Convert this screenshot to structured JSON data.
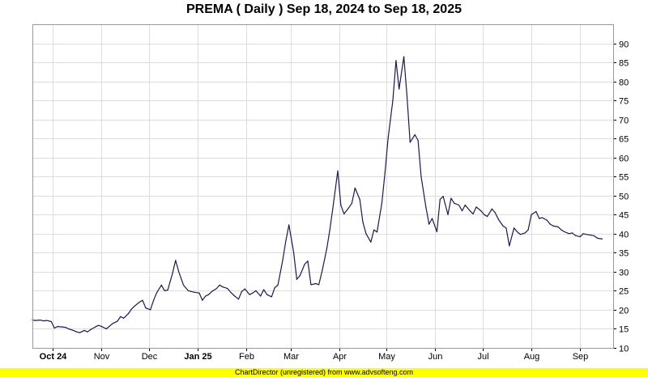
{
  "chart_data": {
    "type": "line",
    "title": "PREMA ( Daily ) Sep 18, 2024 to Sep 18, 2025",
    "xlabel": "",
    "ylabel": "",
    "x_range": [
      "2024-09-18",
      "2025-09-18"
    ],
    "ylim": [
      10,
      95
    ],
    "y_ticks": [
      10,
      15,
      20,
      25,
      30,
      35,
      40,
      45,
      50,
      55,
      60,
      65,
      70,
      75,
      80,
      85,
      90
    ],
    "x_ticks": [
      {
        "label": "Oct 24",
        "date": "2024-10-01",
        "bold": true
      },
      {
        "label": "Nov",
        "date": "2024-11-01",
        "bold": false
      },
      {
        "label": "Dec",
        "date": "2024-12-01",
        "bold": false
      },
      {
        "label": "Jan 25",
        "date": "2025-01-01",
        "bold": true
      },
      {
        "label": "Feb",
        "date": "2025-02-01",
        "bold": false
      },
      {
        "label": "Mar",
        "date": "2025-03-01",
        "bold": false
      },
      {
        "label": "Apr",
        "date": "2025-04-01",
        "bold": false
      },
      {
        "label": "May",
        "date": "2025-05-01",
        "bold": false
      },
      {
        "label": "Jun",
        "date": "2025-06-01",
        "bold": false
      },
      {
        "label": "Jul",
        "date": "2025-07-01",
        "bold": false
      },
      {
        "label": "Aug",
        "date": "2025-08-01",
        "bold": false
      },
      {
        "label": "Sep",
        "date": "2025-09-01",
        "bold": false
      }
    ],
    "grid": true,
    "series": [
      {
        "name": "",
        "color": "#1a1a4d",
        "points": [
          [
            "2024-09-18",
            17.3
          ],
          [
            "2024-09-20",
            17.2
          ],
          [
            "2024-09-23",
            17.3
          ],
          [
            "2024-09-25",
            17.1
          ],
          [
            "2024-09-27",
            17.2
          ],
          [
            "2024-09-30",
            16.9
          ],
          [
            "2024-10-02",
            15.2
          ],
          [
            "2024-10-04",
            15.6
          ],
          [
            "2024-10-07",
            15.5
          ],
          [
            "2024-10-09",
            15.4
          ],
          [
            "2024-10-11",
            15.0
          ],
          [
            "2024-10-14",
            14.6
          ],
          [
            "2024-10-16",
            14.2
          ],
          [
            "2024-10-18",
            14.0
          ],
          [
            "2024-10-21",
            14.6
          ],
          [
            "2024-10-23",
            14.2
          ],
          [
            "2024-10-25",
            14.8
          ],
          [
            "2024-10-28",
            15.5
          ],
          [
            "2024-10-30",
            15.9
          ],
          [
            "2024-11-01",
            15.6
          ],
          [
            "2024-11-04",
            15.0
          ],
          [
            "2024-11-06",
            15.7
          ],
          [
            "2024-11-08",
            16.4
          ],
          [
            "2024-11-11",
            17.0
          ],
          [
            "2024-11-13",
            18.2
          ],
          [
            "2024-11-15",
            17.8
          ],
          [
            "2024-11-18",
            19.0
          ],
          [
            "2024-11-20",
            20.2
          ],
          [
            "2024-11-22",
            21.0
          ],
          [
            "2024-11-25",
            22.0
          ],
          [
            "2024-11-27",
            22.5
          ],
          [
            "2024-11-29",
            20.5
          ],
          [
            "2024-12-02",
            20.0
          ],
          [
            "2024-12-04",
            22.5
          ],
          [
            "2024-12-06",
            24.5
          ],
          [
            "2024-12-09",
            26.5
          ],
          [
            "2024-12-11",
            25.0
          ],
          [
            "2024-12-13",
            25.2
          ],
          [
            "2024-12-16",
            29.5
          ],
          [
            "2024-12-18",
            33.0
          ],
          [
            "2024-12-20",
            30.0
          ],
          [
            "2024-12-23",
            26.5
          ],
          [
            "2024-12-26",
            25.0
          ],
          [
            "2024-12-30",
            24.6
          ],
          [
            "2025-01-02",
            24.4
          ],
          [
            "2025-01-04",
            22.5
          ],
          [
            "2025-01-06",
            23.6
          ],
          [
            "2025-01-08",
            24.0
          ],
          [
            "2025-01-10",
            24.8
          ],
          [
            "2025-01-13",
            25.6
          ],
          [
            "2025-01-15",
            26.5
          ],
          [
            "2025-01-17",
            26.0
          ],
          [
            "2025-01-20",
            25.6
          ],
          [
            "2025-01-22",
            24.6
          ],
          [
            "2025-01-24",
            23.8
          ],
          [
            "2025-01-27",
            22.8
          ],
          [
            "2025-01-29",
            24.8
          ],
          [
            "2025-01-31",
            25.5
          ],
          [
            "2025-02-03",
            24.0
          ],
          [
            "2025-02-05",
            24.4
          ],
          [
            "2025-02-07",
            25.0
          ],
          [
            "2025-02-10",
            23.6
          ],
          [
            "2025-02-12",
            25.3
          ],
          [
            "2025-02-14",
            24.0
          ],
          [
            "2025-02-17",
            23.4
          ],
          [
            "2025-02-19",
            25.8
          ],
          [
            "2025-02-21",
            26.5
          ],
          [
            "2025-02-24",
            33.0
          ],
          [
            "2025-02-26",
            38.0
          ],
          [
            "2025-02-28",
            42.3
          ],
          [
            "2025-03-03",
            35.0
          ],
          [
            "2025-03-05",
            28.0
          ],
          [
            "2025-03-07",
            29.0
          ],
          [
            "2025-03-10",
            32.0
          ],
          [
            "2025-03-12",
            32.8
          ],
          [
            "2025-03-14",
            26.6
          ],
          [
            "2025-03-17",
            26.9
          ],
          [
            "2025-03-19",
            26.6
          ],
          [
            "2025-03-21",
            30.0
          ],
          [
            "2025-03-24",
            36.0
          ],
          [
            "2025-03-26",
            41.0
          ],
          [
            "2025-03-28",
            47.0
          ],
          [
            "2025-03-31",
            56.5
          ],
          [
            "2025-04-02",
            47.5
          ],
          [
            "2025-04-04",
            45.2
          ],
          [
            "2025-04-07",
            46.8
          ],
          [
            "2025-04-09",
            48.0
          ],
          [
            "2025-04-11",
            52.0
          ],
          [
            "2025-04-14",
            49.0
          ],
          [
            "2025-04-16",
            43.0
          ],
          [
            "2025-04-18",
            40.0
          ],
          [
            "2025-04-21",
            37.8
          ],
          [
            "2025-04-23",
            41.0
          ],
          [
            "2025-04-25",
            40.4
          ],
          [
            "2025-04-28",
            48.0
          ],
          [
            "2025-04-30",
            56.0
          ],
          [
            "2025-05-02",
            65.0
          ],
          [
            "2025-05-05",
            75.0
          ],
          [
            "2025-05-07",
            85.5
          ],
          [
            "2025-05-09",
            78.0
          ],
          [
            "2025-05-12",
            86.5
          ],
          [
            "2025-05-14",
            76.0
          ],
          [
            "2025-05-16",
            64.0
          ],
          [
            "2025-05-19",
            66.0
          ],
          [
            "2025-05-21",
            64.5
          ],
          [
            "2025-05-23",
            55.0
          ],
          [
            "2025-05-26",
            47.0
          ],
          [
            "2025-05-28",
            42.5
          ],
          [
            "2025-05-30",
            44.0
          ],
          [
            "2025-06-02",
            40.5
          ],
          [
            "2025-06-04",
            49.0
          ],
          [
            "2025-06-06",
            49.8
          ],
          [
            "2025-06-09",
            45.0
          ],
          [
            "2025-06-11",
            49.3
          ],
          [
            "2025-06-13",
            48.0
          ],
          [
            "2025-06-16",
            47.5
          ],
          [
            "2025-06-18",
            46.0
          ],
          [
            "2025-06-20",
            47.5
          ],
          [
            "2025-06-23",
            46.0
          ],
          [
            "2025-06-25",
            45.2
          ],
          [
            "2025-06-27",
            47.0
          ],
          [
            "2025-06-30",
            46.0
          ],
          [
            "2025-07-02",
            45.0
          ],
          [
            "2025-07-04",
            44.5
          ],
          [
            "2025-07-07",
            46.5
          ],
          [
            "2025-07-09",
            45.5
          ],
          [
            "2025-07-11",
            43.8
          ],
          [
            "2025-07-14",
            42.0
          ],
          [
            "2025-07-16",
            41.5
          ],
          [
            "2025-07-18",
            36.8
          ],
          [
            "2025-07-21",
            41.5
          ],
          [
            "2025-07-23",
            40.5
          ],
          [
            "2025-07-25",
            39.8
          ],
          [
            "2025-07-28",
            40.2
          ],
          [
            "2025-07-30",
            41.0
          ],
          [
            "2025-08-01",
            45.0
          ],
          [
            "2025-08-04",
            45.8
          ],
          [
            "2025-08-06",
            44.0
          ],
          [
            "2025-08-08",
            44.2
          ],
          [
            "2025-08-11",
            43.5
          ],
          [
            "2025-08-13",
            42.5
          ],
          [
            "2025-08-15",
            42.0
          ],
          [
            "2025-08-18",
            41.8
          ],
          [
            "2025-08-20",
            41.0
          ],
          [
            "2025-08-22",
            40.5
          ],
          [
            "2025-08-25",
            40.0
          ],
          [
            "2025-08-27",
            40.2
          ],
          [
            "2025-08-29",
            39.5
          ],
          [
            "2025-09-01",
            39.2
          ],
          [
            "2025-09-03",
            40.0
          ],
          [
            "2025-09-05",
            39.8
          ],
          [
            "2025-09-08",
            39.6
          ],
          [
            "2025-09-10",
            39.4
          ],
          [
            "2025-09-12",
            38.8
          ],
          [
            "2025-09-15",
            38.6
          ]
        ]
      }
    ]
  },
  "footer": {
    "text": "ChartDirector (unregistered) from www.advsofteng.com",
    "color": "#ffff00"
  }
}
